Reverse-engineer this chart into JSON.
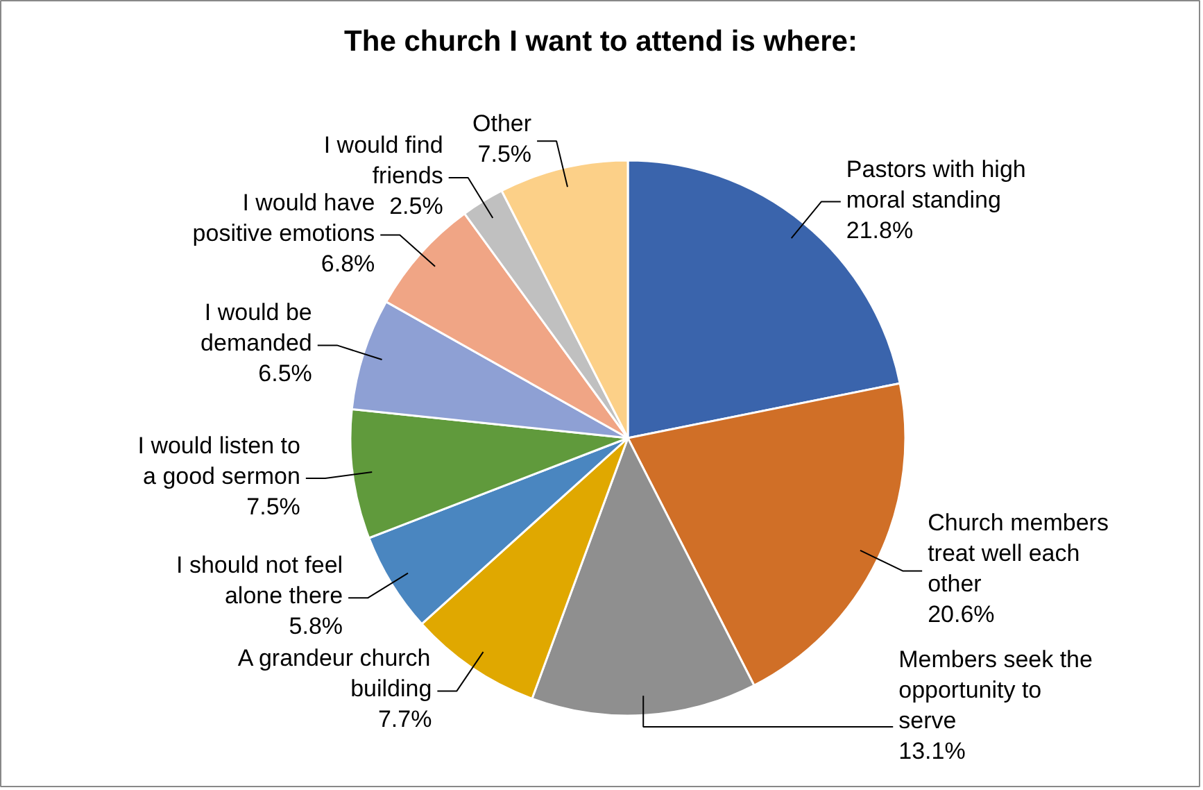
{
  "chart_data": {
    "type": "pie",
    "title": "The church I want to attend is where:",
    "categories": [
      "Pastors with high moral standing",
      "Church members treat well each other",
      "Members seek the opportunity to serve",
      "A grandeur church building",
      "I should not feel alone there",
      "I would listen to a good sermon",
      "I would be demanded",
      "I would have positive emotions",
      "I would find friends",
      "Other"
    ],
    "values": [
      21.8,
      20.6,
      13.1,
      7.7,
      5.8,
      7.5,
      6.5,
      6.8,
      2.5,
      7.5
    ],
    "value_labels": [
      "21.8%",
      "20.6%",
      "13.1%",
      "7.7%",
      "5.8%",
      "7.5%",
      "6.5%",
      "6.8%",
      "2.5%",
      "7.5%"
    ],
    "colors": [
      "#3a64ac",
      "#d06f27",
      "#8f8f8f",
      "#e0a800",
      "#4a86c0",
      "#609a3c",
      "#8ea0d4",
      "#f0a585",
      "#c0c0c0",
      "#fcd088"
    ]
  }
}
